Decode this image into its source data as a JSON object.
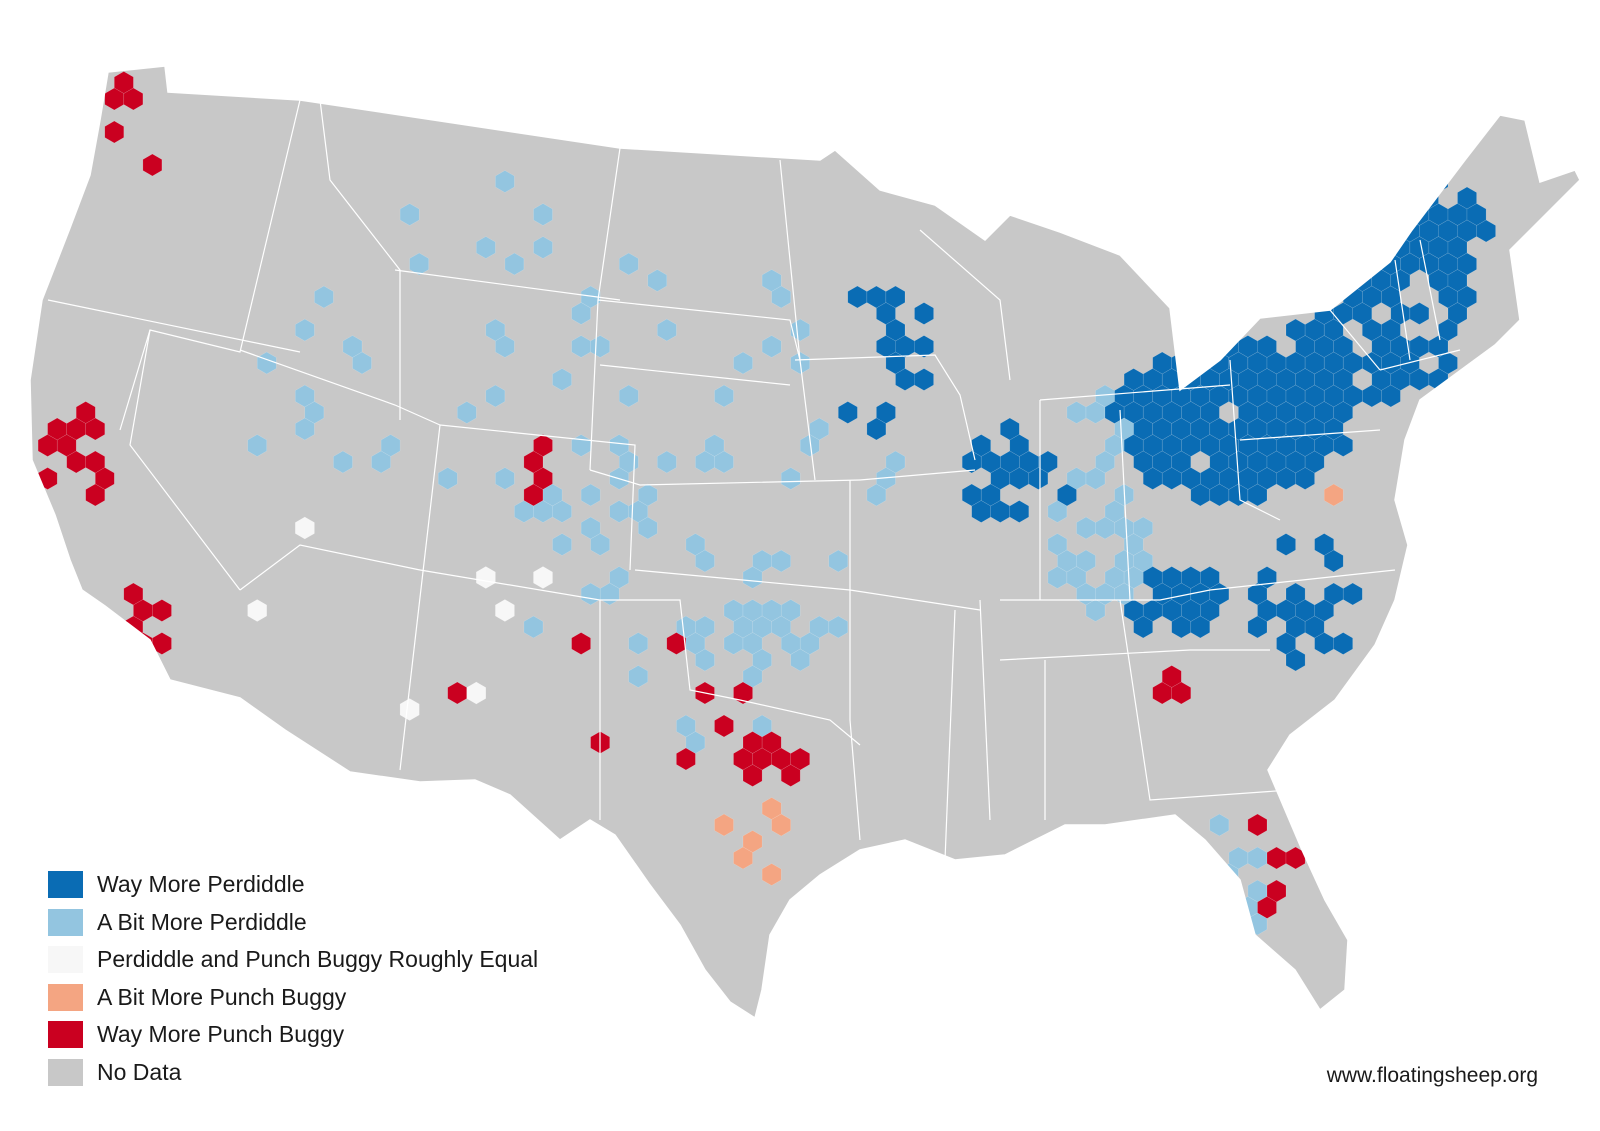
{
  "colors": {
    "way_more_perdiddle": "#0a6cb4",
    "a_bit_more_perdiddle": "#93c5e0",
    "roughly_equal": "#f7f7f7",
    "a_bit_more_punch_buggy": "#f4a582",
    "way_more_punch_buggy": "#ca0020",
    "no_data": "#c8c8c8",
    "state_border": "#ffffff"
  },
  "legend": {
    "items": [
      {
        "key": "way_more_perdiddle",
        "label": "Way More Perdiddle",
        "color": "#0a6cb4"
      },
      {
        "key": "a_bit_more_perdiddle",
        "label": "A Bit More Perdiddle",
        "color": "#93c5e0"
      },
      {
        "key": "roughly_equal",
        "label": "Perdiddle and Punch Buggy Roughly Equal",
        "color": "#f7f7f7"
      },
      {
        "key": "a_bit_more_punch_buggy",
        "label": "A Bit More Punch Buggy",
        "color": "#f4a582"
      },
      {
        "key": "way_more_punch_buggy",
        "label": "Way More Punch Buggy",
        "color": "#ca0020"
      },
      {
        "key": "no_data",
        "label": "No Data",
        "color": "#c8c8c8"
      }
    ]
  },
  "credit": "www.floatingsheep.org"
}
